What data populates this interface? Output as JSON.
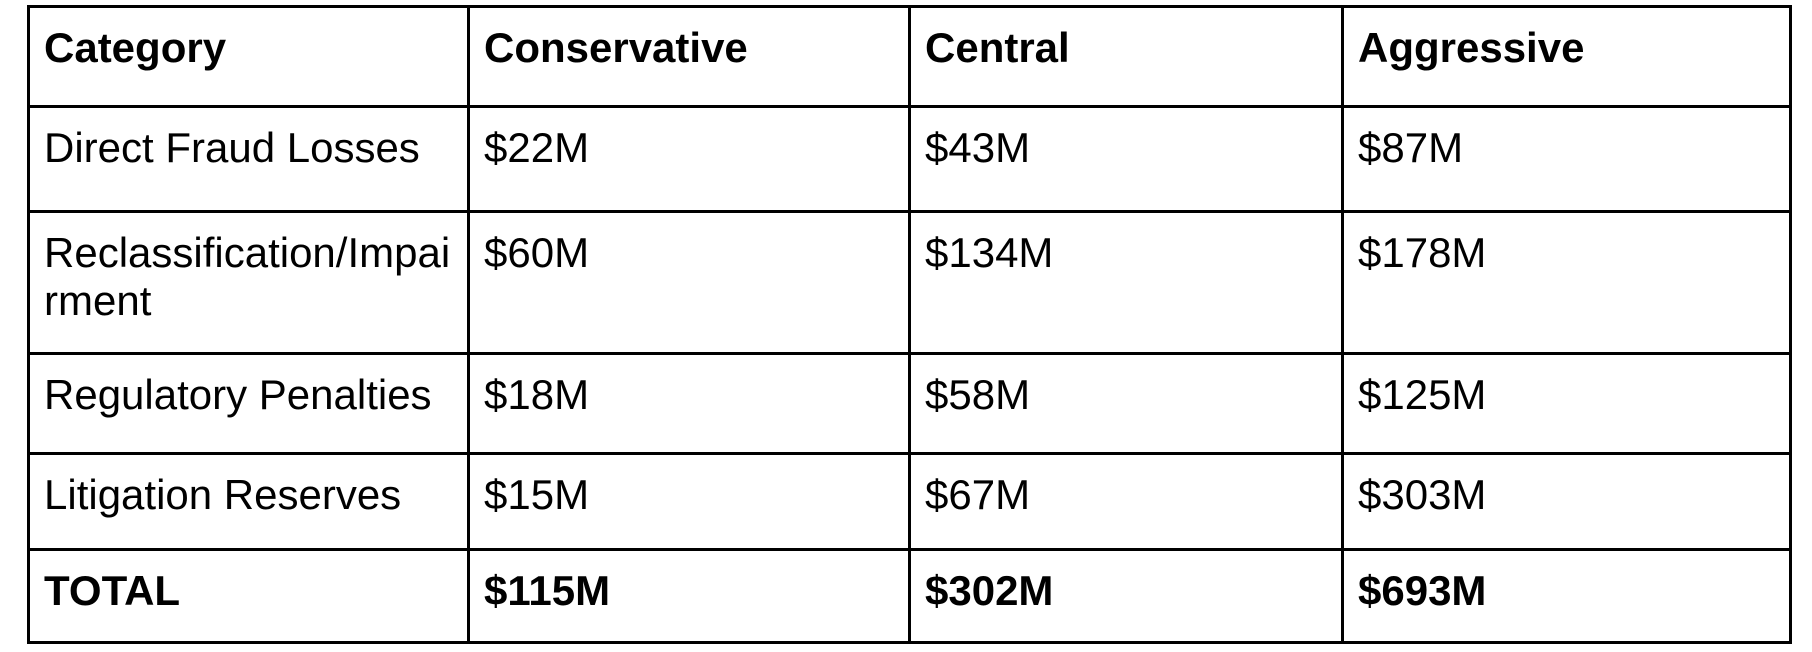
{
  "table": {
    "columns": [
      "Category",
      "Conservative",
      "Central",
      "Aggressive"
    ],
    "rows": [
      {
        "cells": [
          "Direct Fraud Losses",
          "$22M",
          "$43M",
          "$87M"
        ]
      },
      {
        "cells": [
          "Reclassification/Impairment",
          "$60M",
          "$134M",
          "$178M"
        ]
      },
      {
        "cells": [
          "Regulatory Penalties",
          "$18M",
          "$58M",
          "$125M"
        ]
      },
      {
        "cells": [
          "Litigation Reserves",
          "$15M",
          "$67M",
          "$303M"
        ]
      },
      {
        "cells": [
          "TOTAL",
          "$115M",
          "$302M",
          "$693M"
        ],
        "emphasis": "bold"
      }
    ]
  },
  "colors": {
    "border": "#000000",
    "text": "#000000",
    "background": "#ffffff"
  }
}
